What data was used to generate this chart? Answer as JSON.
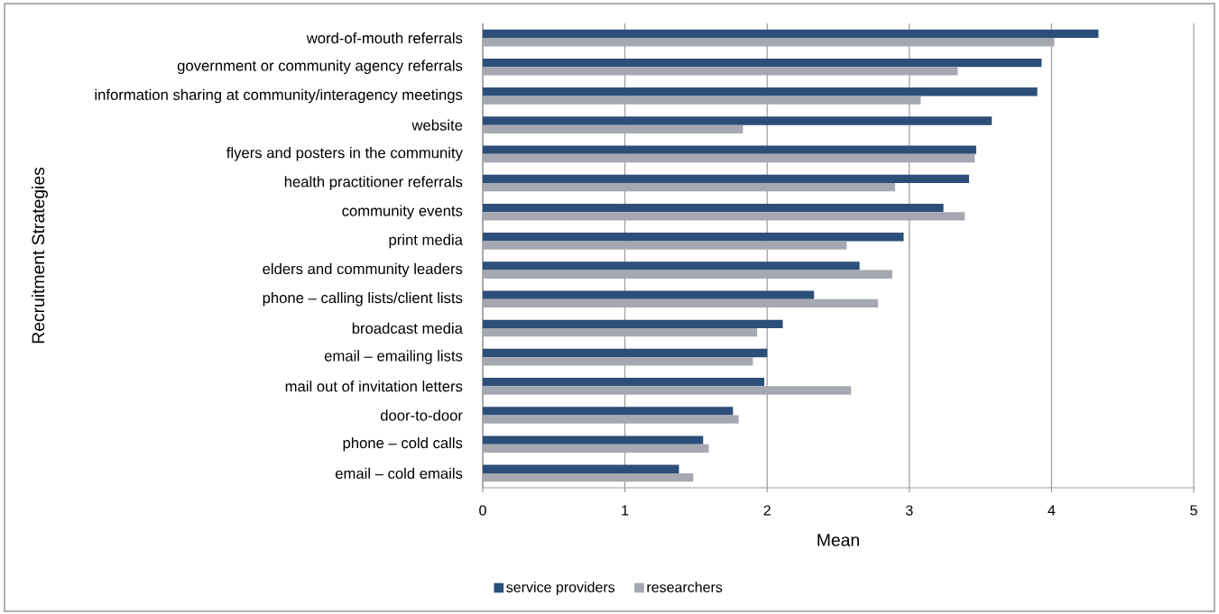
{
  "chart_data": {
    "type": "bar",
    "orientation": "horizontal",
    "categories": [
      "word-of-mouth referrals",
      "government or community agency referrals",
      "information sharing at community/interagency meetings",
      "website",
      "flyers and posters in the community",
      "health practitioner referrals",
      "community events",
      "print media",
      "elders and community leaders",
      "phone – calling lists/client lists",
      "broadcast media",
      "email – emailing lists",
      "mail out of invitation letters",
      "door-to-door",
      "phone – cold calls",
      "email – cold emails"
    ],
    "series": [
      {
        "name": "service providers",
        "color": "#2c4f7a",
        "values": [
          4.33,
          3.93,
          3.9,
          3.58,
          3.47,
          3.42,
          3.24,
          2.96,
          2.65,
          2.33,
          2.11,
          2.0,
          1.98,
          1.76,
          1.55,
          1.38
        ]
      },
      {
        "name": "researchers",
        "color": "#a5a8b0",
        "values": [
          4.02,
          3.34,
          3.08,
          1.83,
          3.46,
          2.9,
          3.39,
          2.56,
          2.88,
          2.78,
          1.93,
          1.9,
          2.59,
          1.8,
          1.59,
          1.48
        ]
      }
    ],
    "xlabel": "Mean",
    "ylabel": "Recruitment Strategies",
    "xlim": [
      0,
      5
    ],
    "xticks": [
      0,
      1,
      2,
      3,
      4,
      5
    ],
    "grid": "x",
    "legend": "bottom"
  }
}
